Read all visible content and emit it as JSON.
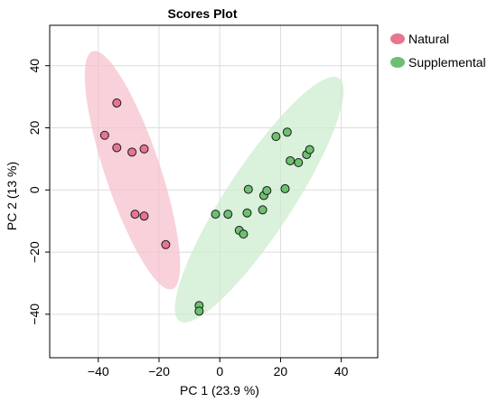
{
  "chart_data": {
    "type": "scatter",
    "title": "Scores Plot",
    "xlabel": "PC 1 (23.9 %)",
    "ylabel": "PC 2 (13 %)",
    "xlim": [
      -56,
      52
    ],
    "ylim": [
      -54,
      53
    ],
    "xticks": [
      -40,
      -20,
      0,
      20,
      40
    ],
    "yticks": [
      -40,
      -20,
      0,
      20,
      40
    ],
    "xtick_labels": [
      "−40",
      "−20",
      "0",
      "20",
      "40"
    ],
    "ytick_labels": [
      "−40",
      "−20",
      "0",
      "20",
      "40"
    ],
    "grid": true,
    "legend_position": "right",
    "series": [
      {
        "name": "Natural",
        "color": "#e8758f",
        "ellipse_color": "#f6c1cf",
        "points": [
          {
            "x": -33.9,
            "y": 28.0
          },
          {
            "x": -37.9,
            "y": 17.6
          },
          {
            "x": -33.9,
            "y": 13.6
          },
          {
            "x": -28.9,
            "y": 12.2
          },
          {
            "x": -24.9,
            "y": 13.2
          },
          {
            "x": -27.9,
            "y": -7.8
          },
          {
            "x": -24.9,
            "y": -8.4
          },
          {
            "x": -17.8,
            "y": -17.6
          }
        ]
      },
      {
        "name": "Supplemental",
        "color": "#6cc070",
        "ellipse_color": "#cdeccf",
        "points": [
          {
            "x": -6.8,
            "y": -37.2
          },
          {
            "x": -6.8,
            "y": -39.0
          },
          {
            "x": -1.4,
            "y": -7.8
          },
          {
            "x": 2.7,
            "y": -7.8
          },
          {
            "x": 6.4,
            "y": -13.0
          },
          {
            "x": 7.8,
            "y": -14.2
          },
          {
            "x": 9.0,
            "y": -7.4
          },
          {
            "x": 9.4,
            "y": 0.2
          },
          {
            "x": 14.1,
            "y": -6.4
          },
          {
            "x": 14.5,
            "y": -1.8
          },
          {
            "x": 15.5,
            "y": -0.2
          },
          {
            "x": 18.5,
            "y": 17.2
          },
          {
            "x": 21.5,
            "y": 0.4
          },
          {
            "x": 22.2,
            "y": 18.6
          },
          {
            "x": 23.2,
            "y": 9.4
          },
          {
            "x": 25.9,
            "y": 8.8
          },
          {
            "x": 28.6,
            "y": 11.4
          },
          {
            "x": 29.6,
            "y": 13.0
          }
        ]
      }
    ]
  }
}
